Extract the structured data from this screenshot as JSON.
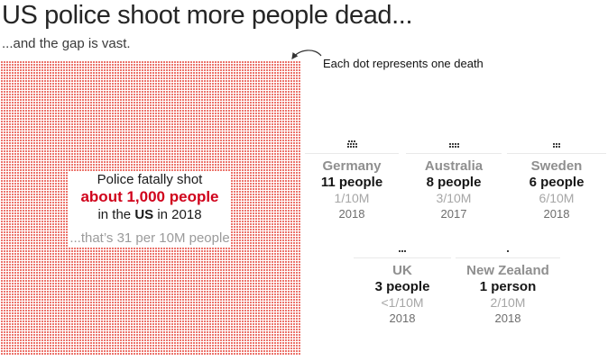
{
  "page": {
    "title": "US police shoot more people dead...",
    "subtitle": "...and the gap is vast.",
    "annotation": "Each dot represents one death"
  },
  "colors": {
    "dot_red": "#e8544b",
    "accent_red": "#d0021b",
    "cluster_dot": "#3e3e3e",
    "rule": "#e9e9e9"
  },
  "us_box": {
    "line1": "Police fatally shot",
    "line2": "about 1,000 people",
    "line3_prefix": "in the ",
    "line3_bold": "US",
    "line3_suffix": " in 2018",
    "line4": "...that’s 31 per 10M people"
  },
  "countries": [
    {
      "name": "Germany",
      "people": "11 people",
      "rate": "1/10M",
      "year": "2018",
      "dot_rows": [
        3,
        4,
        4
      ]
    },
    {
      "name": "Australia",
      "people": "8 people",
      "rate": "3/10M",
      "year": "2017",
      "dot_rows": [
        4,
        4
      ]
    },
    {
      "name": "Sweden",
      "people": "6 people",
      "rate": "6/10M",
      "year": "2018",
      "dot_rows": [
        3,
        3
      ]
    },
    {
      "name": "UK",
      "people": "3 people",
      "rate": "<1/10M",
      "year": "2018",
      "dot_rows": [
        3
      ]
    },
    {
      "name": "New Zealand",
      "people": "1 person",
      "rate": "2/10M",
      "year": "2018",
      "dot_rows": [
        1
      ]
    }
  ],
  "chart_data": {
    "type": "pictogram",
    "note": "dot-matrix / waffle chart; each dot represents one death by police shooting",
    "title": "US police shoot more people dead...",
    "subtitle": "...and the gap is vast.",
    "legend": "Each dot represents one death",
    "series": [
      {
        "country": "US",
        "deaths": 1000,
        "deaths_label": "about 1,000 people",
        "rate": "31 per 10M",
        "year": "2018"
      },
      {
        "country": "Germany",
        "deaths": 11,
        "rate": "1/10M",
        "year": "2018"
      },
      {
        "country": "Australia",
        "deaths": 8,
        "rate": "3/10M",
        "year": "2017"
      },
      {
        "country": "Sweden",
        "deaths": 6,
        "rate": "6/10M",
        "year": "2018"
      },
      {
        "country": "UK",
        "deaths": 3,
        "rate": "<1/10M",
        "year": "2018"
      },
      {
        "country": "New Zealand",
        "deaths": 1,
        "rate": "2/10M",
        "year": "2018"
      }
    ]
  }
}
